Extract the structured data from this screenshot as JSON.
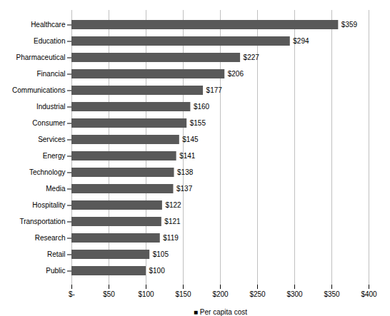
{
  "chart_data": {
    "type": "bar",
    "orientation": "horizontal",
    "categories": [
      "Healthcare",
      "Education",
      "Pharmaceutical",
      "Financial",
      "Communications",
      "Industrial",
      "Consumer",
      "Services",
      "Energy",
      "Technology",
      "Media",
      "Hospitality",
      "Transportation",
      "Research",
      "Retail",
      "Public"
    ],
    "values": [
      359,
      294,
      227,
      206,
      177,
      160,
      155,
      145,
      141,
      138,
      137,
      122,
      121,
      119,
      105,
      100
    ],
    "value_labels": [
      "$359",
      "$294",
      "$227",
      "$206",
      "$177",
      "$160",
      "$155",
      "$145",
      "$141",
      "$138",
      "$137",
      "$122",
      "$121",
      "$119",
      "$105",
      "$100"
    ],
    "data_labels": true,
    "color": "#595959",
    "xlim": [
      0,
      400
    ],
    "xticks": [
      {
        "value": 0,
        "label": "$-"
      },
      {
        "value": 50,
        "label": "$50"
      },
      {
        "value": 100,
        "label": "$100"
      },
      {
        "value": 150,
        "label": "$150"
      },
      {
        "value": 200,
        "label": "$200"
      },
      {
        "value": 250,
        "label": "$250"
      },
      {
        "value": 300,
        "label": "$300"
      },
      {
        "value": 350,
        "label": "$350"
      },
      {
        "value": 400,
        "label": "$400"
      }
    ],
    "xlabel": "■ Per capita cost",
    "grid": true
  }
}
